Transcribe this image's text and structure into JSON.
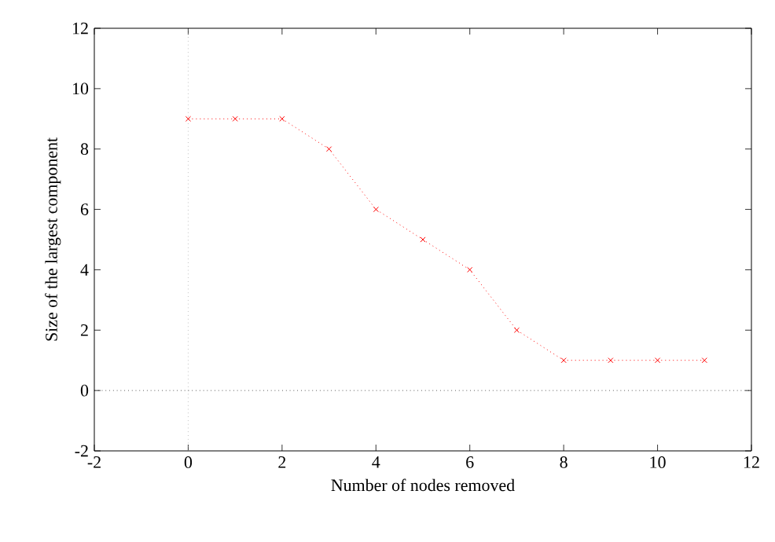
{
  "chart_data": {
    "type": "line",
    "xlabel": "Number of nodes removed",
    "ylabel": "Size of the largest component",
    "x": [
      0,
      1,
      2,
      3,
      4,
      5,
      6,
      7,
      8,
      9,
      10,
      11
    ],
    "series": [
      {
        "color": "#ff0000",
        "values": [
          9,
          9,
          9,
          8,
          6,
          5,
          4,
          2,
          1,
          1,
          1,
          1
        ]
      }
    ],
    "xlim": [
      -2,
      12
    ],
    "ylim": [
      -2,
      12
    ],
    "xticks": [
      -2,
      0,
      2,
      4,
      6,
      8,
      10,
      12
    ],
    "yticks": [
      -2,
      0,
      2,
      4,
      6,
      8,
      10,
      12
    ],
    "marker": "cross",
    "line_style": "dotted",
    "ref_lines": [
      {
        "axis": "x",
        "value": 0,
        "color": "#a0a0a0",
        "line_style": "dotted"
      },
      {
        "axis": "y",
        "value": 0,
        "color": "#000000",
        "line_style": "dotted"
      }
    ]
  }
}
